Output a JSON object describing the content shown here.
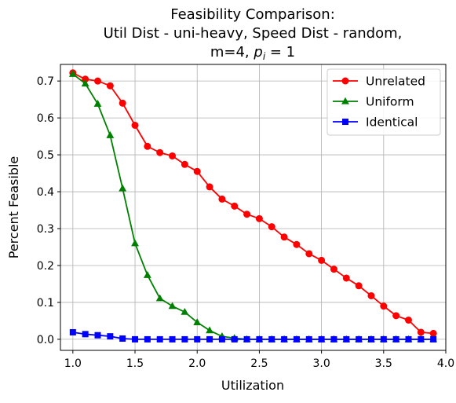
{
  "chart_data": {
    "type": "line",
    "title_lines": [
      "Feasibility Comparison:",
      "Util Dist - uni-heavy, Speed Dist - random,"
    ],
    "title_line3": {
      "prefix": "m=4, ",
      "var": "p",
      "sub": "i",
      "suffix": " = 1"
    },
    "xlabel": "Utilization",
    "ylabel": "Percent Feasible",
    "xlim": [
      0.9,
      4.0
    ],
    "ylim": [
      -0.03,
      0.745
    ],
    "xticks": [
      {
        "value": 1.0,
        "label": "1.0"
      },
      {
        "value": 1.5,
        "label": "1.5"
      },
      {
        "value": 2.0,
        "label": "2.0"
      },
      {
        "value": 2.5,
        "label": "2.5"
      },
      {
        "value": 3.0,
        "label": "3.0"
      },
      {
        "value": 3.5,
        "label": "3.5"
      },
      {
        "value": 4.0,
        "label": "4.0"
      }
    ],
    "yticks": [
      {
        "value": 0.0,
        "label": "0.0"
      },
      {
        "value": 0.1,
        "label": "0.1"
      },
      {
        "value": 0.2,
        "label": "0.2"
      },
      {
        "value": 0.3,
        "label": "0.3"
      },
      {
        "value": 0.4,
        "label": "0.4"
      },
      {
        "value": 0.5,
        "label": "0.5"
      },
      {
        "value": 0.6,
        "label": "0.6"
      },
      {
        "value": 0.7,
        "label": "0.7"
      }
    ],
    "grid": true,
    "legend_position": "top-right",
    "x": [
      1.0,
      1.1,
      1.2,
      1.3,
      1.4,
      1.5,
      1.6,
      1.7,
      1.8,
      1.9,
      2.0,
      2.1,
      2.2,
      2.3,
      2.4,
      2.5,
      2.6,
      2.7,
      2.8,
      2.9,
      3.0,
      3.1,
      3.2,
      3.3,
      3.4,
      3.5,
      3.6,
      3.7,
      3.8,
      3.9
    ],
    "series": [
      {
        "name": "Unrelated",
        "color": "#ff0000",
        "marker": "circle",
        "values": [
          0.722,
          0.705,
          0.7,
          0.687,
          0.64,
          0.58,
          0.523,
          0.506,
          0.497,
          0.474,
          0.455,
          0.413,
          0.38,
          0.361,
          0.339,
          0.327,
          0.305,
          0.277,
          0.257,
          0.232,
          0.214,
          0.19,
          0.166,
          0.145,
          0.118,
          0.09,
          0.064,
          0.052,
          0.019,
          0.016
        ]
      },
      {
        "name": "Uniform",
        "color": "#008000",
        "marker": "triangle",
        "values": [
          0.719,
          0.693,
          0.638,
          0.553,
          0.409,
          0.26,
          0.174,
          0.111,
          0.09,
          0.074,
          0.046,
          0.024,
          0.008,
          0.003,
          0.0,
          0.0,
          0.0,
          0.0,
          0.0,
          0.0,
          0.0,
          0.0,
          0.0,
          0.0,
          0.0,
          0.0,
          0.0,
          0.0,
          0.0,
          0.0
        ]
      },
      {
        "name": "Identical",
        "color": "#0000ff",
        "marker": "square",
        "values": [
          0.019,
          0.014,
          0.011,
          0.008,
          0.002,
          0.0,
          0.0,
          0.0,
          0.0,
          0.0,
          0.0,
          0.0,
          0.0,
          0.0,
          0.0,
          0.0,
          0.0,
          0.0,
          0.0,
          0.0,
          0.0,
          0.0,
          0.0,
          0.0,
          0.0,
          0.0,
          0.0,
          0.0,
          0.0,
          0.0
        ]
      }
    ]
  }
}
